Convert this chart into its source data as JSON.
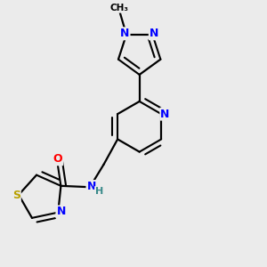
{
  "background_color": "#ebebeb",
  "bond_color": "#000000",
  "atom_colors": {
    "N": "#0000ff",
    "O": "#ff0000",
    "S": "#b8a000",
    "C": "#000000",
    "H": "#3a8a8a"
  },
  "figsize": [
    3.0,
    3.0
  ],
  "dpi": 100
}
